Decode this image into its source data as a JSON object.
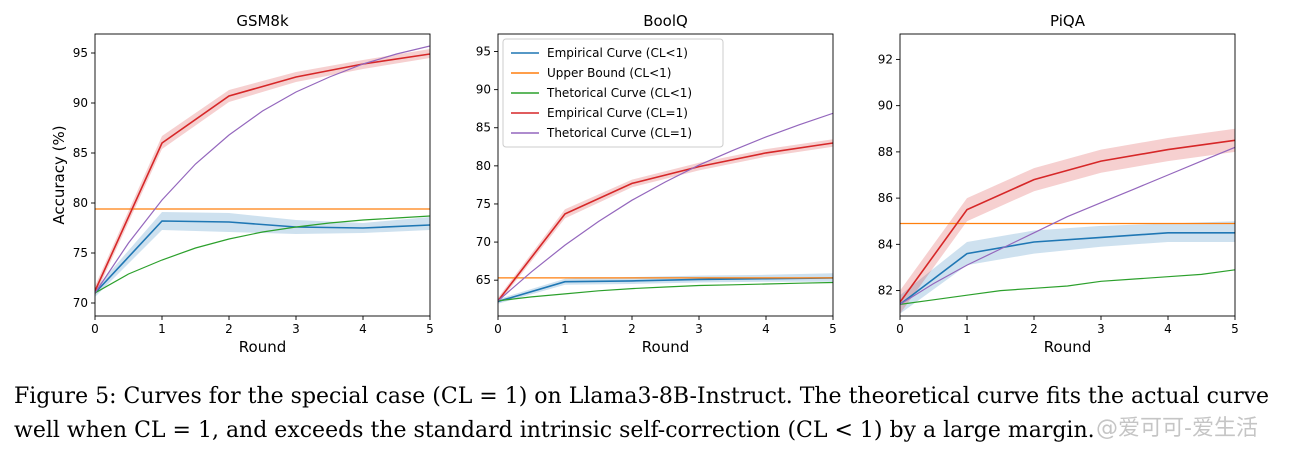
{
  "chart_data": [
    {
      "type": "line",
      "title": "GSM8k",
      "xlabel": "Round",
      "ylabel": "Accuracy (%)",
      "xlim": [
        0,
        5
      ],
      "ylim": [
        68.7,
        96.9
      ],
      "xticks": [
        0,
        1,
        2,
        3,
        4,
        5
      ],
      "yticks": [
        70,
        75,
        80,
        85,
        90,
        95
      ],
      "grid": false,
      "legend": null,
      "series": [
        {
          "name": "Empirical Curve (CL<1)",
          "x": [
            0,
            1,
            2,
            3,
            4,
            5
          ],
          "y": [
            71.0,
            78.2,
            78.1,
            77.6,
            77.5,
            77.8
          ],
          "band": [
            [
              70.6,
              71.4
            ],
            [
              77.3,
              79.1
            ],
            [
              77.1,
              79.0
            ],
            [
              76.9,
              78.3
            ],
            [
              77.0,
              78.0
            ],
            [
              77.3,
              78.6
            ]
          ]
        },
        {
          "name": "Upper Bound (CL<1)",
          "x": [
            0,
            5
          ],
          "y": [
            79.4,
            79.4
          ]
        },
        {
          "name": "Thetorical Curve (CL<1)",
          "x": [
            0,
            0.5,
            1,
            1.5,
            2,
            2.5,
            3,
            3.5,
            4,
            4.5,
            5
          ],
          "y": [
            71.0,
            72.9,
            74.3,
            75.5,
            76.4,
            77.1,
            77.6,
            78.0,
            78.3,
            78.5,
            78.7
          ]
        },
        {
          "name": "Empirical Curve (CL=1)",
          "x": [
            0,
            1,
            2,
            3,
            4,
            5
          ],
          "y": [
            71.2,
            86.0,
            90.7,
            92.6,
            93.9,
            94.9
          ],
          "band": [
            [
              70.7,
              71.7
            ],
            [
              85.4,
              86.7
            ],
            [
              90.1,
              91.3
            ],
            [
              92.1,
              93.1
            ],
            [
              93.4,
              94.3
            ],
            [
              94.5,
              95.4
            ]
          ]
        },
        {
          "name": "Thetorical Curve (CL=1)",
          "x": [
            0,
            0.5,
            1,
            1.5,
            2,
            2.5,
            3,
            3.5,
            4,
            4.5,
            5
          ],
          "y": [
            71.0,
            76.0,
            80.3,
            83.9,
            86.8,
            89.2,
            91.1,
            92.6,
            93.9,
            94.9,
            95.7
          ]
        }
      ]
    },
    {
      "type": "line",
      "title": "BoolQ",
      "xlabel": "Round",
      "ylabel": "",
      "xlim": [
        0,
        5
      ],
      "ylim": [
        60.3,
        97.3
      ],
      "xticks": [
        0,
        1,
        2,
        3,
        4,
        5
      ],
      "yticks": [
        65,
        70,
        75,
        80,
        85,
        90,
        95
      ],
      "grid": false,
      "legend": "top-left",
      "legend_entries": [
        {
          "label": "Empirical Curve (CL<1)",
          "color": "#1f77b4"
        },
        {
          "label": "Upper Bound (CL<1)",
          "color": "#ff7f0e"
        },
        {
          "label": "Thetorical Curve (CL<1)",
          "color": "#2ca02c"
        },
        {
          "label": "Empirical Curve (CL=1)",
          "color": "#d62728"
        },
        {
          "label": "Thetorical Curve (CL=1)",
          "color": "#9467bd"
        }
      ],
      "series": [
        {
          "name": "Empirical Curve (CL<1)",
          "x": [
            0,
            1,
            2,
            3,
            4,
            5
          ],
          "y": [
            62.2,
            64.8,
            64.9,
            65.1,
            65.2,
            65.3
          ],
          "band": [
            [
              61.9,
              62.5
            ],
            [
              64.4,
              65.2
            ],
            [
              64.5,
              65.4
            ],
            [
              64.7,
              65.6
            ],
            [
              64.8,
              65.7
            ],
            [
              64.8,
              65.9
            ]
          ]
        },
        {
          "name": "Upper Bound (CL<1)",
          "x": [
            0,
            5
          ],
          "y": [
            65.3,
            65.3
          ]
        },
        {
          "name": "Thetorical Curve (CL<1)",
          "x": [
            0,
            0.5,
            1,
            1.5,
            2,
            2.5,
            3,
            3.5,
            4,
            4.5,
            5
          ],
          "y": [
            62.3,
            62.8,
            63.2,
            63.6,
            63.9,
            64.1,
            64.3,
            64.4,
            64.5,
            64.6,
            64.7
          ]
        },
        {
          "name": "Empirical Curve (CL=1)",
          "x": [
            0,
            1,
            2,
            3,
            4,
            5
          ],
          "y": [
            62.3,
            73.7,
            77.7,
            79.9,
            81.7,
            83.0
          ],
          "band": [
            [
              61.9,
              62.7
            ],
            [
              73.1,
              74.3
            ],
            [
              77.2,
              78.2
            ],
            [
              79.4,
              80.4
            ],
            [
              81.2,
              82.2
            ],
            [
              82.5,
              83.5
            ]
          ]
        },
        {
          "name": "Thetorical Curve (CL=1)",
          "x": [
            0,
            0.5,
            1,
            1.5,
            2,
            2.5,
            3,
            3.5,
            4,
            4.5,
            5
          ],
          "y": [
            62.3,
            66.1,
            69.6,
            72.7,
            75.5,
            77.9,
            80.1,
            82.0,
            83.8,
            85.4,
            86.9
          ]
        }
      ]
    },
    {
      "type": "line",
      "title": "PiQA",
      "xlabel": "Round",
      "ylabel": "",
      "xlim": [
        0,
        5
      ],
      "ylim": [
        80.9,
        93.1
      ],
      "xticks": [
        0,
        1,
        2,
        3,
        4,
        5
      ],
      "yticks": [
        82,
        84,
        86,
        88,
        90,
        92
      ],
      "grid": false,
      "legend": null,
      "series": [
        {
          "name": "Empirical Curve (CL<1)",
          "x": [
            0,
            1,
            2,
            3,
            4,
            5
          ],
          "y": [
            81.4,
            83.6,
            84.1,
            84.3,
            84.5,
            84.5
          ],
          "band": [
            [
              81.0,
              81.8
            ],
            [
              83.1,
              84.1
            ],
            [
              83.6,
              84.6
            ],
            [
              83.9,
              84.8
            ],
            [
              84.1,
              84.9
            ],
            [
              84.1,
              85.0
            ]
          ]
        },
        {
          "name": "Upper Bound (CL<1)",
          "x": [
            0,
            5
          ],
          "y": [
            84.9,
            84.9
          ]
        },
        {
          "name": "Thetorical Curve (CL<1)",
          "x": [
            0,
            0.5,
            1,
            1.5,
            2,
            2.5,
            3,
            3.5,
            4,
            4.5,
            5
          ],
          "y": [
            81.4,
            81.6,
            81.8,
            82.0,
            82.1,
            82.2,
            82.4,
            82.5,
            82.6,
            82.7,
            82.9
          ]
        },
        {
          "name": "Empirical Curve (CL=1)",
          "x": [
            0,
            1,
            2,
            3,
            4,
            5
          ],
          "y": [
            81.5,
            85.5,
            86.8,
            87.6,
            88.1,
            88.5
          ],
          "band": [
            [
              81.0,
              82.0
            ],
            [
              85.0,
              86.0
            ],
            [
              86.3,
              87.3
            ],
            [
              87.1,
              88.1
            ],
            [
              87.6,
              88.6
            ],
            [
              88.0,
              89.0
            ]
          ]
        },
        {
          "name": "Thetorical Curve (CL=1)",
          "x": [
            0,
            0.5,
            1,
            1.5,
            2,
            2.5,
            3,
            3.5,
            4,
            4.5,
            5
          ],
          "y": [
            81.4,
            82.3,
            83.1,
            83.8,
            84.5,
            85.2,
            85.8,
            86.4,
            87.0,
            87.6,
            88.2
          ]
        }
      ]
    }
  ],
  "colors": {
    "Empirical Curve (CL<1)": "#1f77b4",
    "Upper Bound (CL<1)": "#ff7f0e",
    "Thetorical Curve (CL<1)": "#2ca02c",
    "Empirical Curve (CL=1)": "#d62728",
    "Thetorical Curve (CL=1)": "#9467bd"
  },
  "caption": "Figure 5: Curves for the special case (CL = 1) on Llama3-8B-Instruct. The theoretical curve fits the actual curve well when CL = 1, and exceeds the standard intrinsic self-correction (CL < 1) by a large margin.",
  "watermark": "@爱可可-爱生活"
}
